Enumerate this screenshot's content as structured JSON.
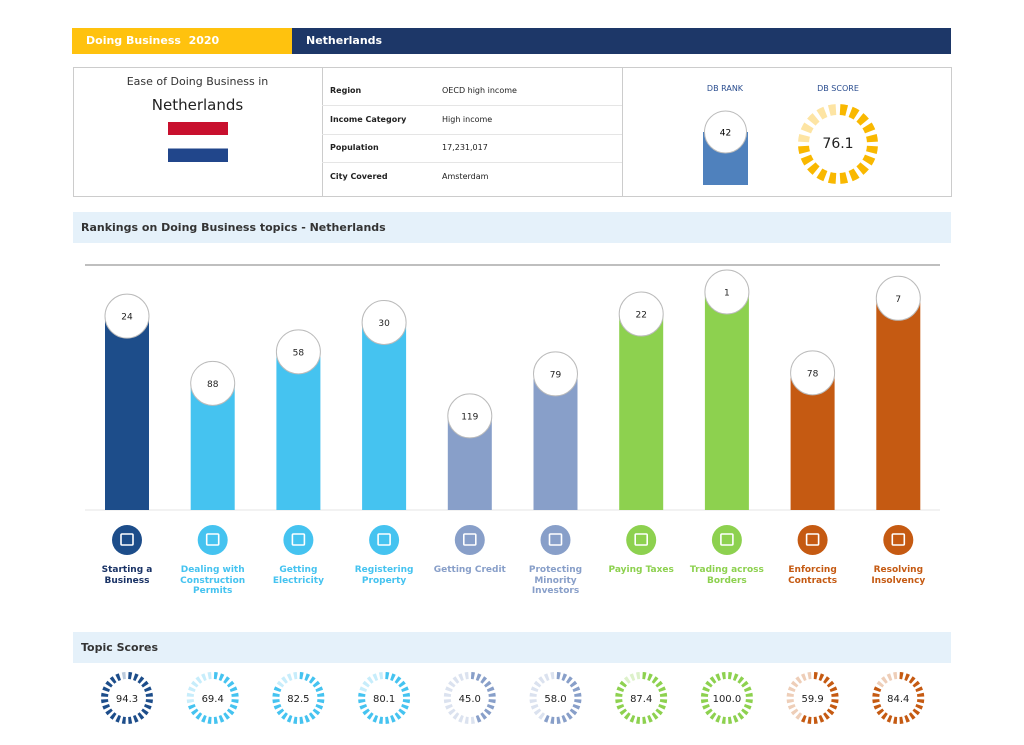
{
  "header": {
    "report": "Doing Business  2020",
    "economy": "Netherlands"
  },
  "summary": {
    "intro": "Ease of Doing Business in",
    "economy": "Netherlands",
    "details": [
      {
        "label": "Region",
        "value": "OECD high income"
      },
      {
        "label": "Income Category",
        "value": "High income"
      },
      {
        "label": "Population",
        "value": "17,231,017"
      },
      {
        "label": "City Covered",
        "value": "Amsterdam"
      }
    ],
    "rank_label": "DB RANK",
    "rank": 42,
    "score_label": "DB SCORE",
    "score": 76.1
  },
  "rankings": {
    "title": "Rankings on Doing Business topics - Netherlands",
    "topics": [
      {
        "name": "Starting a Business",
        "rank": 24,
        "score": 94.3,
        "color": "#1d4d8a"
      },
      {
        "name": "Dealing with Construction Permits",
        "rank": 88,
        "score": 69.4,
        "color": "#45c3f0"
      },
      {
        "name": "Getting Electricity",
        "rank": 58,
        "score": 82.5,
        "color": "#45c3f0"
      },
      {
        "name": "Registering Property",
        "rank": 30,
        "score": 80.1,
        "color": "#45c3f0"
      },
      {
        "name": "Getting Credit",
        "rank": 119,
        "score": 45.0,
        "color": "#889fc9"
      },
      {
        "name": "Protecting Minority Investors",
        "rank": 79,
        "score": 58.0,
        "color": "#889fc9"
      },
      {
        "name": "Paying Taxes",
        "rank": 22,
        "score": 87.4,
        "color": "#8dd14f"
      },
      {
        "name": "Trading across Borders",
        "rank": 1,
        "score": 100.0,
        "color": "#8dd14f"
      },
      {
        "name": "Enforcing Contracts",
        "rank": 78,
        "score": 59.9,
        "color": "#c55a12"
      },
      {
        "name": "Resolving Insolvency",
        "rank": 7,
        "score": 84.4,
        "color": "#c55a12"
      }
    ]
  },
  "scores": {
    "title": "Topic Scores",
    "score_labels": [
      "94.3",
      "69.4",
      "82.5",
      "80.1",
      "45.0",
      "58.0",
      "87.4",
      "100.0",
      "59.9",
      "84.4"
    ]
  }
}
